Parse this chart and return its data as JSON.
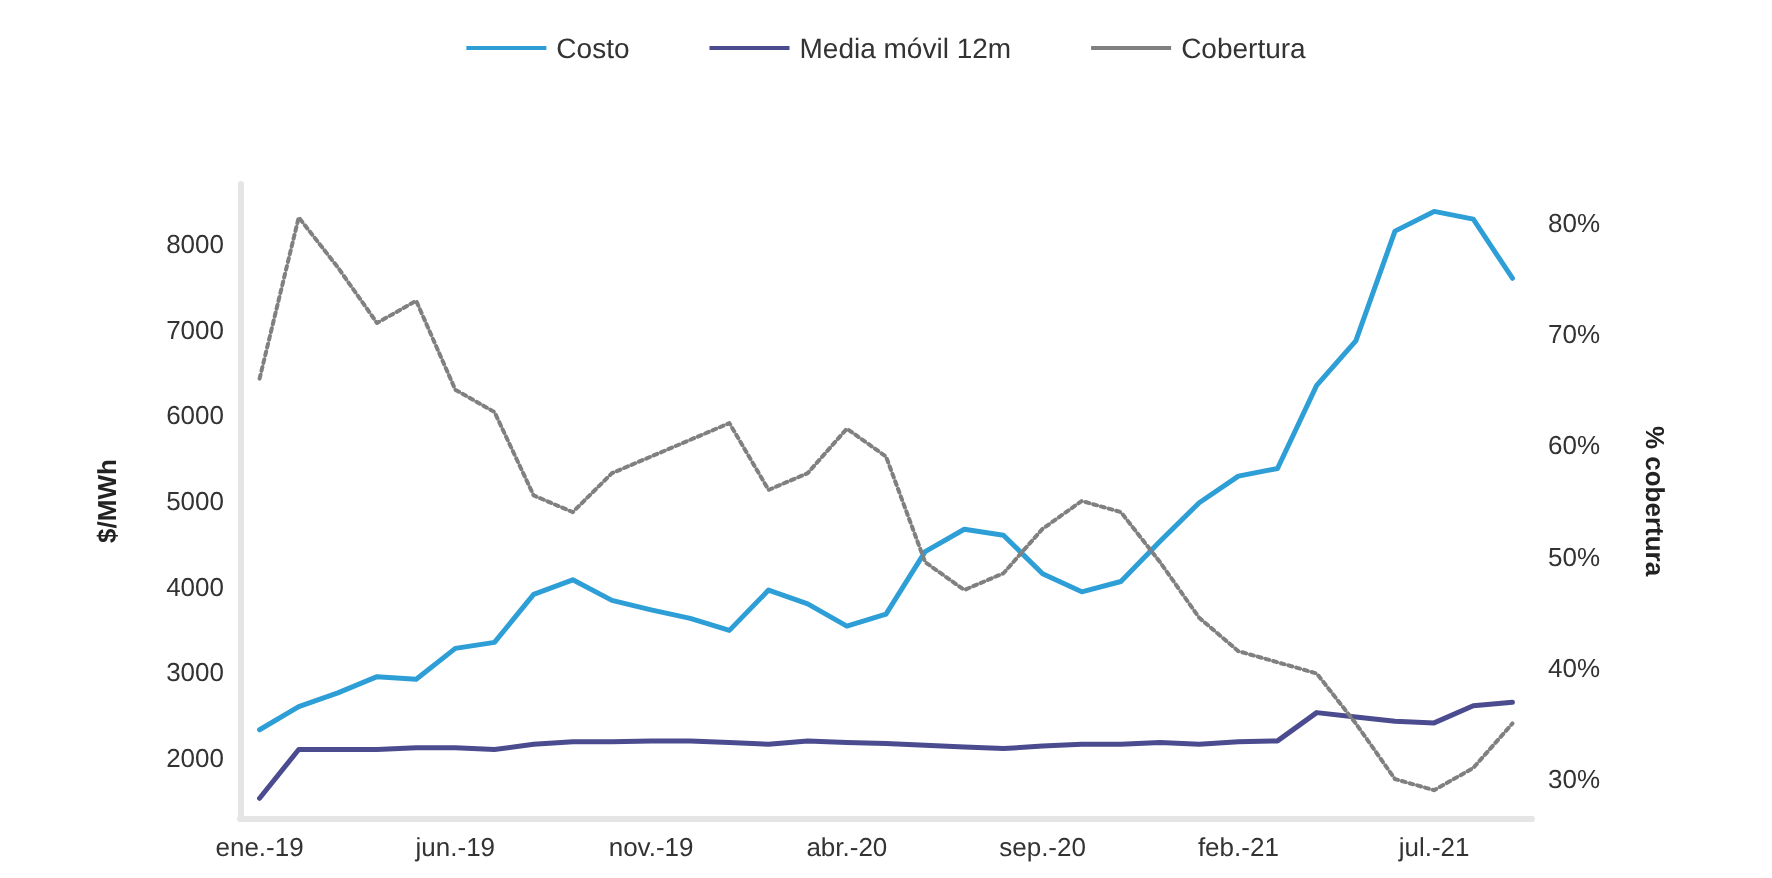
{
  "chart_data": {
    "type": "line",
    "ylabel": "$/MWh",
    "y2label": "% cobertura",
    "categories": [
      "ene.-19",
      null,
      null,
      null,
      null,
      "jun.-19",
      null,
      null,
      null,
      null,
      "nov.-19",
      null,
      null,
      null,
      null,
      "abr.-20",
      null,
      null,
      null,
      null,
      "sep.-20",
      null,
      null,
      null,
      null,
      "feb.-21",
      null,
      null,
      null,
      null,
      "jul.-21",
      null,
      null
    ],
    "series": [
      {
        "name": "Costo",
        "color": "#2e9fd6",
        "line_style": "solid",
        "values": [
          2330,
          2600,
          2760,
          2950,
          2920,
          3280,
          3350,
          3910,
          4080,
          3840,
          3730,
          3630,
          3490,
          3960,
          3800,
          3540,
          3680,
          4410,
          4670,
          4600,
          4150,
          3940,
          4060,
          4530,
          4980,
          5290,
          5380,
          6350,
          6870,
          8150,
          8380,
          8290,
          7600
        ]
      },
      {
        "name": "Media móvil 12m",
        "color": "#4b4b8f",
        "line_style": "solid",
        "values": [
          1530,
          2100,
          2100,
          2100,
          2120,
          2120,
          2100,
          2160,
          2190,
          2190,
          2200,
          2200,
          2180,
          2160,
          2200,
          2180,
          2170,
          2150,
          2130,
          2110,
          2140,
          2160,
          2160,
          2180,
          2160,
          2190,
          2200,
          2530,
          2480,
          2430,
          2410,
          2610,
          2650
        ]
      },
      {
        "name": "Cobertura",
        "color": "#808080",
        "line_style": "dotted",
        "axis": "y2",
        "values": [
          66,
          80.5,
          76,
          71,
          73,
          65,
          63,
          55.5,
          54,
          57.5,
          59,
          60.5,
          62,
          56,
          57.5,
          61.5,
          59,
          49.5,
          47,
          48.5,
          52.5,
          55,
          54,
          49.5,
          44.5,
          41.5,
          40.5,
          39.5,
          35,
          30,
          29,
          31,
          35
        ]
      }
    ],
    "ylim": [
      1300,
      8700
    ],
    "yticks": [
      2000,
      3000,
      4000,
      5000,
      6000,
      7000,
      8000
    ],
    "y2lim": [
      26.5,
      83.5
    ],
    "y2ticks": [
      {
        "value": 30,
        "label": "30%"
      },
      {
        "value": 40,
        "label": "40%"
      },
      {
        "value": 50,
        "label": "50%"
      },
      {
        "value": 60,
        "label": "60%"
      },
      {
        "value": 70,
        "label": "70%"
      },
      {
        "value": 80,
        "label": "80%"
      }
    ],
    "grid": false,
    "legend": "top",
    "marker": "none"
  }
}
